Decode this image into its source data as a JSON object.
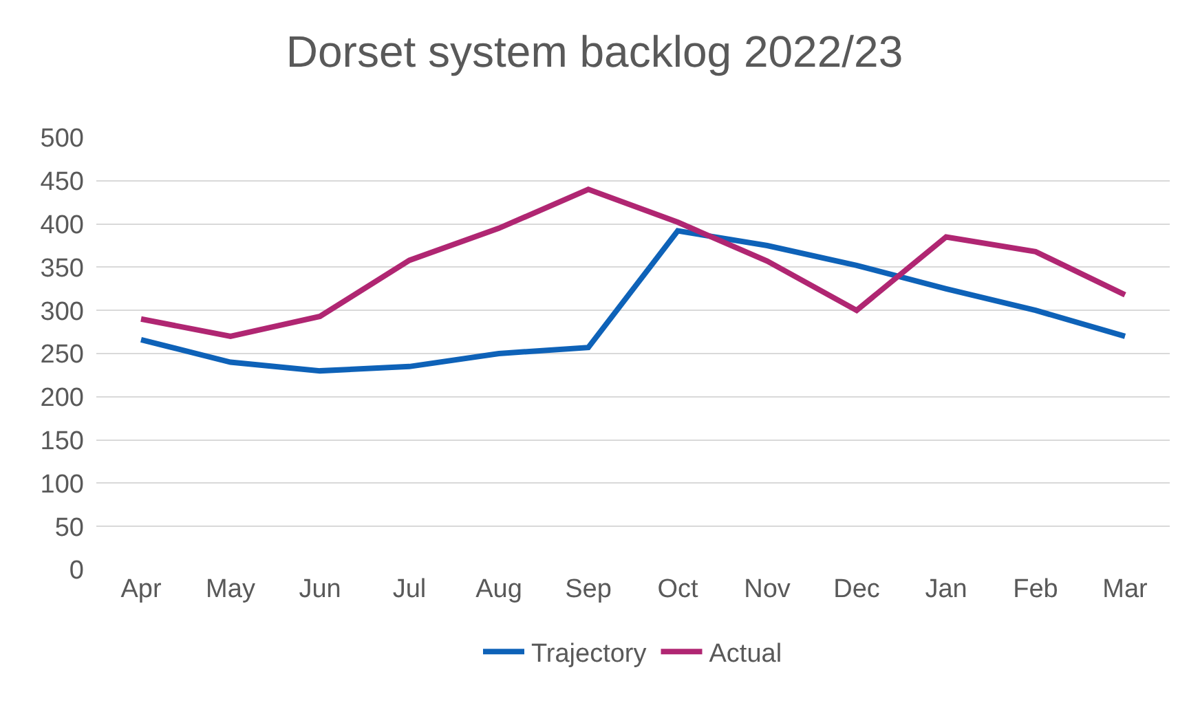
{
  "chart_data": {
    "type": "line",
    "title": "Dorset system backlog 2022/23",
    "categories": [
      "Apr",
      "May",
      "Jun",
      "Jul",
      "Aug",
      "Sep",
      "Oct",
      "Nov",
      "Dec",
      "Jan",
      "Feb",
      "Mar"
    ],
    "series": [
      {
        "name": "Trajectory",
        "color": "#0e62b8",
        "values": [
          266,
          240,
          230,
          235,
          250,
          257,
          392,
          375,
          352,
          325,
          300,
          270
        ]
      },
      {
        "name": "Actual",
        "color": "#b02672",
        "values": [
          290,
          270,
          293,
          358,
          395,
          440,
          402,
          357,
          300,
          385,
          368,
          318
        ]
      }
    ],
    "ylim": [
      0,
      500
    ],
    "yticks": [
      0,
      50,
      100,
      150,
      200,
      250,
      300,
      350,
      400,
      450,
      500
    ],
    "grid": "y",
    "legend": "bottom",
    "marker": "none",
    "line_style": "solid"
  }
}
